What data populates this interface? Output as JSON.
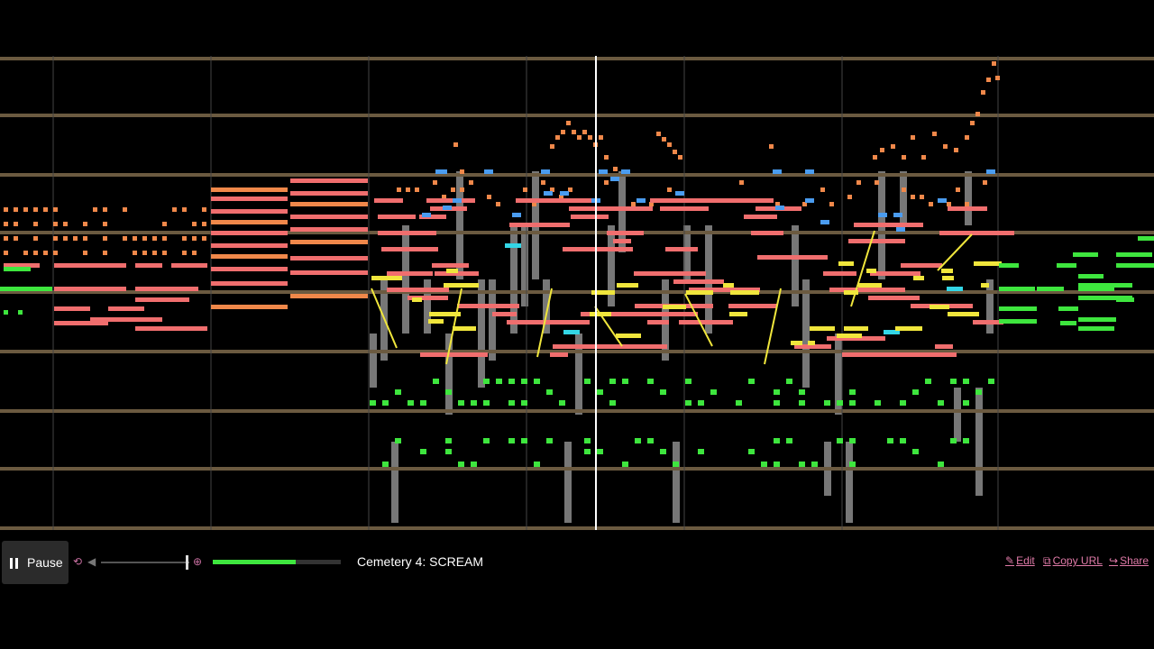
{
  "player": {
    "pause_label": "Pause",
    "volume_level": 0.97,
    "progress_fraction": 0.65,
    "song_title": "Cemetery 4: SCREAM"
  },
  "links": [
    {
      "label": "Edit",
      "icon": "pencil-icon"
    },
    {
      "label": "Copy URL",
      "icon": "copy-icon"
    },
    {
      "label": "Share",
      "icon": "share-icon"
    }
  ],
  "colors": {
    "background": "#000000",
    "channel_line": "#6b5a40",
    "bar_line": "#555555",
    "playhead": "#ffffff",
    "pitch_orange": "#f0884a",
    "pitch_salmon": "#f06e6e",
    "pitch_blue": "#4a9cf0",
    "pitch_cyan": "#33d6e6",
    "pitch_yellow": "#f0e63c",
    "pitch_green": "#3ee63e",
    "drum_gray": "#888888",
    "accent_link": "#e07aa8"
  }
}
